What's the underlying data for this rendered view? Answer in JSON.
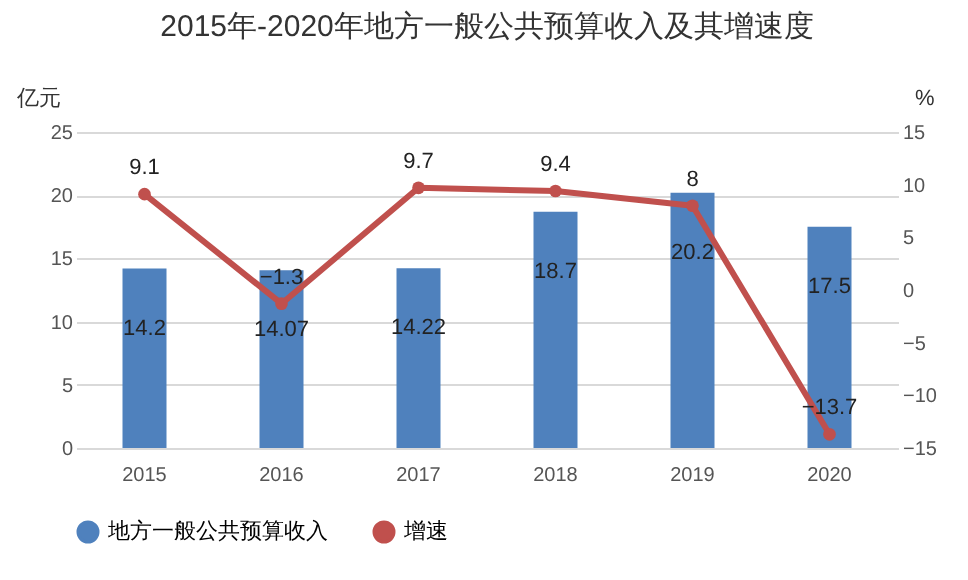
{
  "chart_data": {
    "type": "bar",
    "title": "2015年-2020年地方一般公共预算收入及其增速度",
    "ylabel": "亿元",
    "y2label": "%",
    "categories": [
      "2015",
      "2016",
      "2017",
      "2018",
      "2019",
      "2020"
    ],
    "series": [
      {
        "name": "地方一般公共预算收入",
        "color": "#4f81bd",
        "values": [
          14.2,
          14.07,
          14.22,
          18.7,
          20.2,
          17.5
        ]
      },
      {
        "name": "增速",
        "type": "line",
        "axis": "y2",
        "color": "#c0504d",
        "marker": "circle",
        "values": [
          9.1,
          -1.3,
          9.7,
          9.4,
          8,
          -13.7
        ]
      }
    ],
    "ylim": [
      0,
      25
    ],
    "yticks": [
      0,
      5,
      10,
      15,
      20,
      25
    ],
    "y2lim": [
      -15,
      15
    ],
    "y2ticks": [
      -15,
      -10,
      -5,
      0,
      5,
      10,
      15
    ],
    "grid": "y",
    "legend": "bottom",
    "data_labels": true
  }
}
